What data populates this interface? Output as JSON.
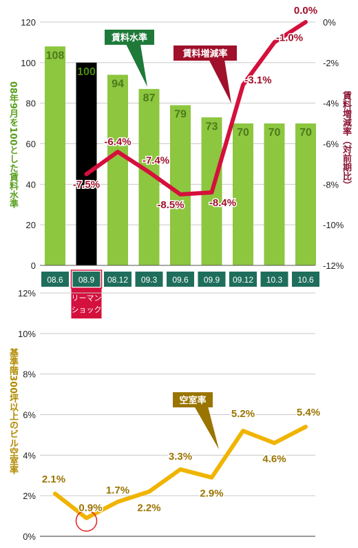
{
  "chart_data": [
    {
      "type": "bar",
      "categories": [
        "08.6",
        "08.9",
        "08.12",
        "09.3",
        "09.6",
        "09.9",
        "09.12",
        "10.3",
        "10.6"
      ],
      "series": [
        {
          "name": "賃料水準",
          "values": [
            108,
            100,
            94,
            87,
            79,
            73,
            70,
            70,
            70
          ]
        }
      ],
      "value_labels": [
        "108",
        "100",
        "94",
        "87",
        "79",
        "73",
        "70",
        "70",
        "70"
      ],
      "highlight_index": 1,
      "ylabel": "08年9月を100とした賃料水準",
      "ylim": [
        0,
        120
      ],
      "yticks": [
        "0",
        "20",
        "40",
        "60",
        "80",
        "100",
        "120"
      ],
      "legend_tag": "賃料水準",
      "colors": {
        "bar": "#8dc63f",
        "highlight_bar": "#000000",
        "label": "#4a7a1a",
        "tag": "#1f7a3a",
        "category_box": "#1f6e5c"
      }
    },
    {
      "type": "line",
      "categories": [
        "08.9",
        "08.12",
        "09.3",
        "09.6",
        "09.9",
        "09.12",
        "10.3",
        "10.6"
      ],
      "series": [
        {
          "name": "賃料増減率",
          "values": [
            -7.5,
            -6.4,
            -7.4,
            -8.5,
            -8.4,
            -3.1,
            -1.0,
            0.0
          ]
        }
      ],
      "value_labels": [
        "-7.5%",
        "-6.4%",
        "-7.4%",
        "-8.5%",
        "-8.4%",
        "-3.1%",
        "-1.0%",
        "0.0%"
      ],
      "ylabel": "賃料増減率（対前期比）",
      "ylim": [
        -12,
        0
      ],
      "yticks": [
        "0%",
        "-2%",
        "-4%",
        "-6%",
        "-8%",
        "-10%",
        "-12%"
      ],
      "legend_tag": "賃料増減率",
      "colors": {
        "line": "#d4103c",
        "label": "#a0102a",
        "tag": "#a0102a",
        "axis_label": "#8a1030"
      }
    },
    {
      "type": "line",
      "categories": [
        "08.6",
        "08.9",
        "08.12",
        "09.3",
        "09.6",
        "09.9",
        "09.12",
        "10.3",
        "10.6"
      ],
      "series": [
        {
          "name": "空室率",
          "values": [
            2.1,
            0.9,
            1.7,
            2.2,
            3.3,
            2.9,
            5.2,
            4.6,
            5.4
          ]
        }
      ],
      "value_labels": [
        "2.1%",
        "0.9%",
        "1.7%",
        "2.2%",
        "3.3%",
        "2.9%",
        "5.2%",
        "4.6%",
        "5.4%"
      ],
      "ylabel": "基準階300坪以上のビル空室率",
      "ylim": [
        0,
        12
      ],
      "yticks": [
        "0%",
        "2%",
        "4%",
        "6%",
        "8%",
        "10%",
        "12%"
      ],
      "legend_tag": "空室率",
      "circled_index": 1,
      "colors": {
        "line": "#f0b400",
        "label": "#9a7400",
        "tag": "#9a7400",
        "axis_label": "#b08a00",
        "circle": "#e02020"
      }
    }
  ],
  "annotation": {
    "text_line1": "リーマン",
    "text_line2": "ショック",
    "color": "#d4103c"
  }
}
